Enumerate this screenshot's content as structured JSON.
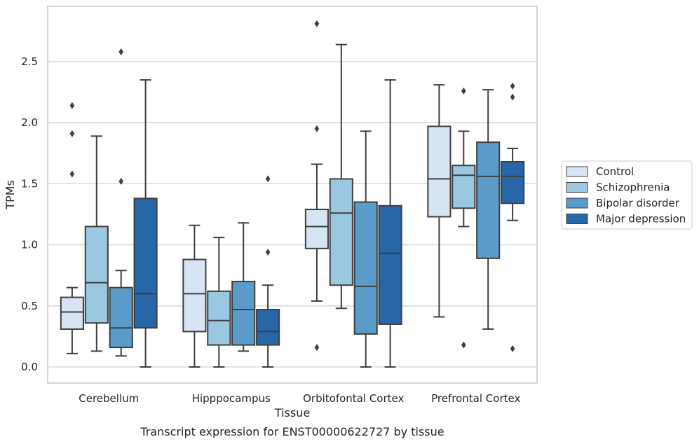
{
  "chart_data": {
    "type": "box",
    "xlabel": "Tissue",
    "ylabel": "TPMs",
    "caption": "Transcript expression for ENST00000622727 by tissue",
    "ylim": [
      -0.13,
      2.95
    ],
    "yticks": [
      0.0,
      0.5,
      1.0,
      1.5,
      2.0,
      2.5
    ],
    "grid": "horizontal",
    "legend_position": "right",
    "categories": [
      "Cerebellum",
      "Hipppocampus",
      "Orbitofontal Cortex",
      "Prefrontal Cortex"
    ],
    "series": [
      {
        "name": "Control",
        "color": "#d6e4f3",
        "boxes": [
          {
            "whisker_low": 0.11,
            "q1": 0.31,
            "median": 0.45,
            "q3": 0.57,
            "whisker_high": 0.65,
            "outliers": [
              1.58,
              1.91,
              2.14
            ]
          },
          {
            "whisker_low": 0.0,
            "q1": 0.29,
            "median": 0.6,
            "q3": 0.88,
            "whisker_high": 1.16,
            "outliers": []
          },
          {
            "whisker_low": 0.54,
            "q1": 0.97,
            "median": 1.15,
            "q3": 1.29,
            "whisker_high": 1.66,
            "outliers": [
              0.16,
              1.95,
              2.81
            ]
          },
          {
            "whisker_low": 0.41,
            "q1": 1.23,
            "median": 1.54,
            "q3": 1.97,
            "whisker_high": 2.31,
            "outliers": []
          }
        ]
      },
      {
        "name": "Schizophrenia",
        "color": "#9ac8e0",
        "boxes": [
          {
            "whisker_low": 0.13,
            "q1": 0.36,
            "median": 0.69,
            "q3": 1.15,
            "whisker_high": 1.89,
            "outliers": []
          },
          {
            "whisker_low": 0.0,
            "q1": 0.18,
            "median": 0.38,
            "q3": 0.62,
            "whisker_high": 1.06,
            "outliers": []
          },
          {
            "whisker_low": 0.48,
            "q1": 0.67,
            "median": 1.26,
            "q3": 1.54,
            "whisker_high": 2.64,
            "outliers": []
          },
          {
            "whisker_low": 1.15,
            "q1": 1.3,
            "median": 1.57,
            "q3": 1.65,
            "whisker_high": 1.93,
            "outliers": [
              0.18,
              2.26
            ]
          }
        ]
      },
      {
        "name": "Bipolar disorder",
        "color": "#5a9bc9",
        "boxes": [
          {
            "whisker_low": 0.09,
            "q1": 0.16,
            "median": 0.32,
            "q3": 0.65,
            "whisker_high": 0.79,
            "outliers": [
              1.52,
              2.58
            ]
          },
          {
            "whisker_low": 0.13,
            "q1": 0.18,
            "median": 0.47,
            "q3": 0.7,
            "whisker_high": 1.18,
            "outliers": []
          },
          {
            "whisker_low": 0.0,
            "q1": 0.27,
            "median": 0.66,
            "q3": 1.35,
            "whisker_high": 1.93,
            "outliers": []
          },
          {
            "whisker_low": 0.31,
            "q1": 0.89,
            "median": 1.56,
            "q3": 1.84,
            "whisker_high": 2.27,
            "outliers": []
          }
        ]
      },
      {
        "name": "Major depression",
        "color": "#2767a8",
        "boxes": [
          {
            "whisker_low": 0.0,
            "q1": 0.32,
            "median": 0.6,
            "q3": 1.38,
            "whisker_high": 2.35,
            "outliers": []
          },
          {
            "whisker_low": 0.0,
            "q1": 0.18,
            "median": 0.29,
            "q3": 0.47,
            "whisker_high": 0.67,
            "outliers": [
              0.94,
              1.54
            ]
          },
          {
            "whisker_low": 0.0,
            "q1": 0.35,
            "median": 0.93,
            "q3": 1.32,
            "whisker_high": 2.35,
            "outliers": []
          },
          {
            "whisker_low": 1.2,
            "q1": 1.34,
            "median": 1.56,
            "q3": 1.68,
            "whisker_high": 1.79,
            "outliers": [
              0.15,
              2.21,
              2.3
            ]
          }
        ]
      }
    ]
  }
}
